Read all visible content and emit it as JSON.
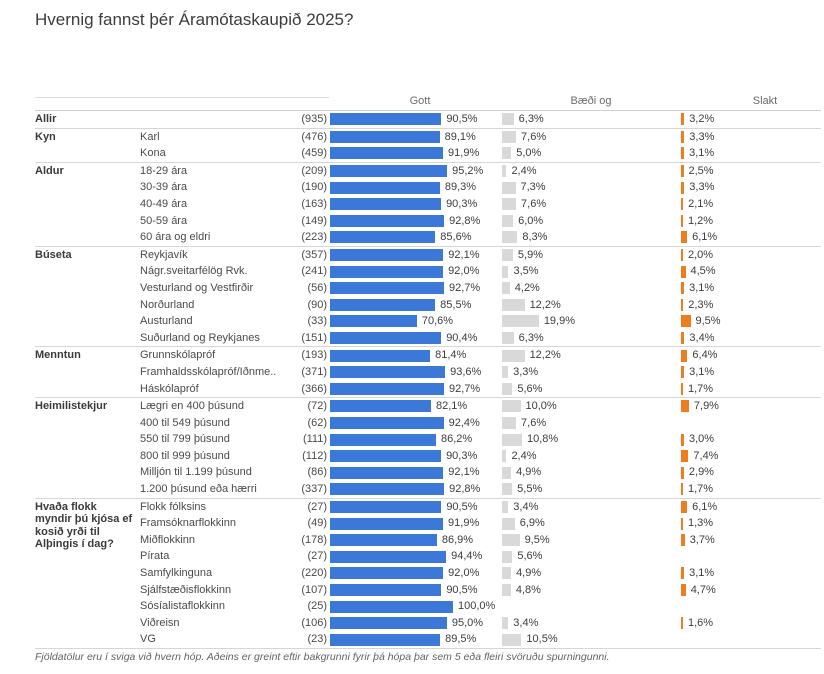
{
  "title": "Hvernig fannst þér Áramótaskaupið 2025?",
  "footnote": "Fjöldatölur eru í sviga við hvern hóp. Aðeins er greint eftir bakgrunni fyrir þá hópa þar sem 5 eða fleiri svöruðu spurningunni.",
  "chart_data": {
    "type": "bar",
    "orientation": "horizontal",
    "value_format": "percent, comma decimal, 1dp",
    "axis_range_percent": [
      0,
      100
    ],
    "columns": [
      "Gott",
      "Bæði og",
      "Slakt"
    ],
    "colors": {
      "gott": "#3b78d8",
      "baedi_og": "#d9d9d9",
      "slakt": "#ee7d1f"
    },
    "groups": [
      {
        "label": "Allir",
        "rows": [
          {
            "label": "",
            "n": 935,
            "values": [
              90.5,
              6.3,
              3.2
            ]
          }
        ]
      },
      {
        "label": "Kyn",
        "rows": [
          {
            "label": "Karl",
            "n": 476,
            "values": [
              89.1,
              7.6,
              3.3
            ]
          },
          {
            "label": "Kona",
            "n": 459,
            "values": [
              91.9,
              5.0,
              3.1
            ]
          }
        ]
      },
      {
        "label": "Aldur",
        "rows": [
          {
            "label": "18-29 ára",
            "n": 209,
            "values": [
              95.2,
              2.4,
              2.5
            ]
          },
          {
            "label": "30-39 ára",
            "n": 190,
            "values": [
              89.3,
              7.3,
              3.3
            ]
          },
          {
            "label": "40-49 ára",
            "n": 163,
            "values": [
              90.3,
              7.6,
              2.1
            ]
          },
          {
            "label": "50-59 ára",
            "n": 149,
            "values": [
              92.8,
              6.0,
              1.2
            ]
          },
          {
            "label": "60 ára og eldri",
            "n": 223,
            "values": [
              85.6,
              8.3,
              6.1
            ]
          }
        ]
      },
      {
        "label": "Búseta",
        "rows": [
          {
            "label": "Reykjavík",
            "n": 357,
            "values": [
              92.1,
              5.9,
              2.0
            ]
          },
          {
            "label": "Nágr.sveitarfélög Rvk.",
            "n": 241,
            "values": [
              92.0,
              3.5,
              4.5
            ]
          },
          {
            "label": "Vesturland og Vestfirðir",
            "n": 56,
            "values": [
              92.7,
              4.2,
              3.1
            ]
          },
          {
            "label": "Norðurland",
            "n": 90,
            "values": [
              85.5,
              12.2,
              2.3
            ]
          },
          {
            "label": "Austurland",
            "n": 33,
            "values": [
              70.6,
              19.9,
              9.5
            ]
          },
          {
            "label": "Suðurland og Reykjanes",
            "n": 151,
            "values": [
              90.4,
              6.3,
              3.4
            ]
          }
        ]
      },
      {
        "label": "Menntun",
        "rows": [
          {
            "label": "Grunnskólapróf",
            "n": 193,
            "values": [
              81.4,
              12.2,
              6.4
            ]
          },
          {
            "label": "Framhaldsskólapróf/Iðnme..",
            "n": 371,
            "values": [
              93.6,
              3.3,
              3.1
            ]
          },
          {
            "label": "Háskólapróf",
            "n": 366,
            "values": [
              92.7,
              5.6,
              1.7
            ]
          }
        ]
      },
      {
        "label": "Heimilistekjur",
        "rows": [
          {
            "label": "Lægri en 400 þúsund",
            "n": 72,
            "values": [
              82.1,
              10.0,
              7.9
            ]
          },
          {
            "label": "400 til 549 þúsund",
            "n": 62,
            "values": [
              92.4,
              7.6,
              null
            ]
          },
          {
            "label": "550 til 799 þúsund",
            "n": 111,
            "values": [
              86.2,
              10.8,
              3.0
            ]
          },
          {
            "label": "800 til 999 þúsund",
            "n": 112,
            "values": [
              90.3,
              2.4,
              7.4
            ]
          },
          {
            "label": "Milljón til 1.199 þúsund",
            "n": 86,
            "values": [
              92.1,
              4.9,
              2.9
            ]
          },
          {
            "label": "1.200 þúsund eða hærri",
            "n": 337,
            "values": [
              92.8,
              5.5,
              1.7
            ]
          }
        ]
      },
      {
        "label": "Hvaða flokk myndir þú kjósa ef kosið yrði til Alþingis í dag?",
        "rows": [
          {
            "label": "Flokk fólksins",
            "n": 27,
            "values": [
              90.5,
              3.4,
              6.1
            ]
          },
          {
            "label": "Framsóknarflokkinn",
            "n": 49,
            "values": [
              91.9,
              6.9,
              1.3
            ]
          },
          {
            "label": "Miðflokkinn",
            "n": 178,
            "values": [
              86.9,
              9.5,
              3.7
            ]
          },
          {
            "label": "Pírata",
            "n": 27,
            "values": [
              94.4,
              5.6,
              null
            ]
          },
          {
            "label": "Samfylkinguna",
            "n": 220,
            "values": [
              92.0,
              4.9,
              3.1
            ]
          },
          {
            "label": "Sjálfstæðisflokkinn",
            "n": 107,
            "values": [
              90.5,
              4.8,
              4.7
            ]
          },
          {
            "label": "Sósíalistaflokkinn",
            "n": 25,
            "values": [
              100.0,
              null,
              null
            ]
          },
          {
            "label": "Viðreisn",
            "n": 106,
            "values": [
              95.0,
              3.4,
              1.6
            ]
          },
          {
            "label": "VG",
            "n": 23,
            "values": [
              89.5,
              10.5,
              null
            ]
          }
        ]
      }
    ]
  }
}
